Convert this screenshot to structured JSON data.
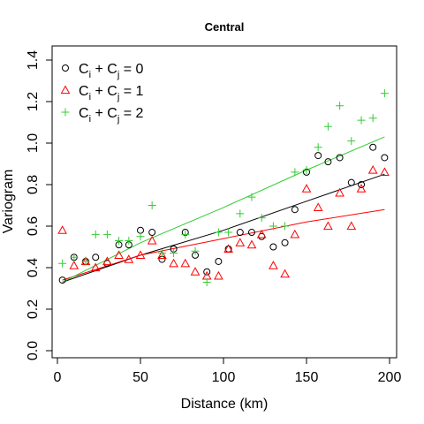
{
  "chart_data": {
    "type": "scatter",
    "title": "Central",
    "xlabel": "Distance (km)",
    "ylabel": "Variogram",
    "xlim": [
      0,
      200
    ],
    "ylim": [
      0,
      1.4
    ],
    "xticks": [
      0,
      50,
      100,
      150,
      200
    ],
    "yticks": [
      0.0,
      0.2,
      0.4,
      0.6,
      0.8,
      1.0,
      1.2,
      1.4
    ],
    "x_tick_labels": [
      "0",
      "50",
      "100",
      "150",
      "200"
    ],
    "y_tick_labels": [
      "0.0",
      "0.2",
      "0.4",
      "0.6",
      "0.8",
      "1.0",
      "1.2",
      "1.4"
    ],
    "grid": false,
    "legend": {
      "position": "top-left"
    },
    "series": [
      {
        "legend_parts": [
          "C",
          "i",
          " + C",
          "j",
          " = 0"
        ],
        "marker": "circle",
        "color": "#000000",
        "points": [
          [
            3,
            0.34
          ],
          [
            10,
            0.45
          ],
          [
            17,
            0.43
          ],
          [
            23,
            0.45
          ],
          [
            30,
            0.42
          ],
          [
            37,
            0.51
          ],
          [
            43,
            0.51
          ],
          [
            50,
            0.58
          ],
          [
            57,
            0.57
          ],
          [
            63,
            0.44
          ],
          [
            70,
            0.49
          ],
          [
            77,
            0.57
          ],
          [
            83,
            0.46
          ],
          [
            90,
            0.38
          ],
          [
            97,
            0.43
          ],
          [
            103,
            0.49
          ],
          [
            110,
            0.57
          ],
          [
            117,
            0.57
          ],
          [
            123,
            0.55
          ],
          [
            130,
            0.5
          ],
          [
            137,
            0.52
          ],
          [
            143,
            0.68
          ],
          [
            150,
            0.86
          ],
          [
            157,
            0.94
          ],
          [
            163,
            0.91
          ],
          [
            170,
            0.93
          ],
          [
            177,
            0.81
          ],
          [
            183,
            0.8
          ],
          [
            190,
            0.98
          ],
          [
            197,
            0.93
          ]
        ],
        "fit_line": [
          [
            3,
            0.33
          ],
          [
            50,
            0.46
          ],
          [
            100,
            0.58
          ],
          [
            150,
            0.72
          ],
          [
            197,
            0.85
          ]
        ]
      },
      {
        "legend_parts": [
          "C",
          "i",
          " + C",
          "j",
          " = 1"
        ],
        "marker": "triangle",
        "color": "#ff0000",
        "points": [
          [
            3,
            0.58
          ],
          [
            10,
            0.41
          ],
          [
            17,
            0.43
          ],
          [
            23,
            0.4
          ],
          [
            30,
            0.43
          ],
          [
            37,
            0.46
          ],
          [
            43,
            0.44
          ],
          [
            50,
            0.46
          ],
          [
            57,
            0.53
          ],
          [
            63,
            0.46
          ],
          [
            70,
            0.42
          ],
          [
            77,
            0.42
          ],
          [
            83,
            0.38
          ],
          [
            90,
            0.36
          ],
          [
            97,
            0.36
          ],
          [
            103,
            0.49
          ],
          [
            110,
            0.52
          ],
          [
            117,
            0.51
          ],
          [
            123,
            0.56
          ],
          [
            130,
            0.41
          ],
          [
            137,
            0.37
          ],
          [
            143,
            0.56
          ],
          [
            150,
            0.78
          ],
          [
            157,
            0.69
          ],
          [
            163,
            0.6
          ],
          [
            170,
            0.76
          ],
          [
            177,
            0.6
          ],
          [
            183,
            0.78
          ],
          [
            190,
            0.87
          ],
          [
            197,
            0.86
          ]
        ],
        "fit_line": [
          [
            3,
            0.34
          ],
          [
            50,
            0.46
          ],
          [
            100,
            0.54
          ],
          [
            150,
            0.62
          ],
          [
            197,
            0.68
          ]
        ]
      },
      {
        "legend_parts": [
          "C",
          "i",
          " + C",
          "j",
          " = 2"
        ],
        "marker": "plus",
        "color": "#33cc33",
        "points": [
          [
            3,
            0.42
          ],
          [
            10,
            0.45
          ],
          [
            17,
            0.43
          ],
          [
            23,
            0.56
          ],
          [
            30,
            0.56
          ],
          [
            37,
            0.53
          ],
          [
            43,
            0.53
          ],
          [
            50,
            0.55
          ],
          [
            57,
            0.7
          ],
          [
            63,
            0.47
          ],
          [
            70,
            0.47
          ],
          [
            77,
            0.56
          ],
          [
            83,
            0.48
          ],
          [
            90,
            0.33
          ],
          [
            97,
            0.57
          ],
          [
            103,
            0.57
          ],
          [
            110,
            0.66
          ],
          [
            117,
            0.74
          ],
          [
            123,
            0.64
          ],
          [
            130,
            0.6
          ],
          [
            137,
            0.6
          ],
          [
            143,
            0.86
          ],
          [
            150,
            0.87
          ],
          [
            157,
            0.98
          ],
          [
            163,
            1.08
          ],
          [
            170,
            1.18
          ],
          [
            177,
            1.01
          ],
          [
            183,
            1.11
          ],
          [
            190,
            1.12
          ],
          [
            197,
            1.24
          ]
        ],
        "fit_line": [
          [
            3,
            0.33
          ],
          [
            50,
            0.52
          ],
          [
            100,
            0.69
          ],
          [
            150,
            0.87
          ],
          [
            197,
            1.03
          ]
        ]
      }
    ]
  }
}
